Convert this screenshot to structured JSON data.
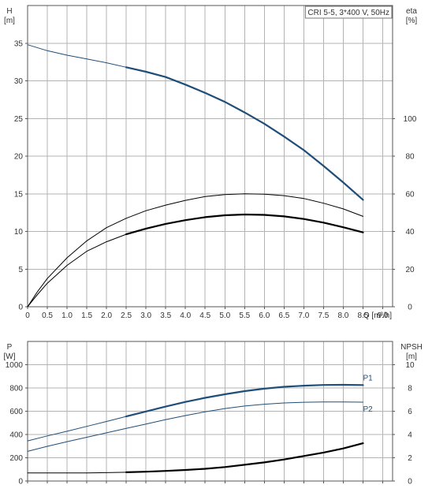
{
  "chart_data": [
    {
      "type": "line",
      "panel": "head-efficiency",
      "legend_box": "CRI 5-5, 3*400 V, 50Hz",
      "y_left_label_line1": "H",
      "y_left_label_line2": "[m]",
      "y_right_label_line1": "eta",
      "y_right_label_line2": "[%]",
      "x_label": "Q [m³/h]",
      "xlim": [
        0,
        9.25
      ],
      "ylim_left": [
        0,
        40
      ],
      "ylim_right": [
        0,
        160
      ],
      "x_ticks": [
        "0",
        "0.5",
        "1.0",
        "1.5",
        "2.0",
        "2.5",
        "3.0",
        "3.5",
        "4.0",
        "4.5",
        "5.0",
        "5.5",
        "6.0",
        "6.5",
        "7.0",
        "7.5",
        "8.0",
        "8.5",
        "9.0"
      ],
      "y_left_ticks": [
        "0",
        "5",
        "10",
        "15",
        "20",
        "25",
        "30",
        "35"
      ],
      "y_right_ticks": [
        "0",
        "20",
        "40",
        "60",
        "80",
        "100"
      ],
      "grid": true,
      "series": [
        {
          "axis": "left",
          "color": "#1f4e79",
          "x": [
            0,
            0.5,
            1.0,
            1.5,
            2.0,
            2.5,
            3.0,
            3.5,
            4.0,
            4.5,
            5.0,
            5.5,
            6.0,
            6.5,
            7.0,
            7.5,
            8.0,
            8.5
          ],
          "y": [
            34.8,
            34.0,
            33.4,
            32.9,
            32.4,
            31.8,
            31.2,
            30.5,
            29.5,
            28.4,
            27.2,
            25.8,
            24.3,
            22.6,
            20.8,
            18.7,
            16.5,
            14.2
          ],
          "bold_from_x": 2.5
        },
        {
          "axis": "right",
          "color": "#000000",
          "x": [
            0,
            0.25,
            0.5,
            1.0,
            1.5,
            2.0,
            2.5,
            3.0,
            3.5,
            4.0,
            4.5,
            5.0,
            5.5,
            6.0,
            6.5,
            7.0,
            7.5,
            8.0,
            8.5
          ],
          "y": [
            0,
            8,
            15,
            26,
            35,
            42,
            47,
            51,
            54,
            56.5,
            58.5,
            59.6,
            60,
            59.8,
            59,
            57.5,
            55,
            52,
            48
          ],
          "bold_from_x": 99
        },
        {
          "axis": "right",
          "color": "#000000",
          "x": [
            0,
            0.25,
            0.5,
            1.0,
            1.5,
            2.0,
            2.5,
            3.0,
            3.5,
            4.0,
            4.5,
            5.0,
            5.5,
            6.0,
            6.5,
            7.0,
            7.5,
            8.0,
            8.5
          ],
          "y": [
            0,
            6.5,
            12.5,
            22,
            29.5,
            34.5,
            38.5,
            41.5,
            44,
            46,
            47.6,
            48.6,
            49,
            48.8,
            48,
            46.6,
            44.7,
            42.2,
            39.5
          ],
          "bold_from_x": 2.5
        }
      ]
    },
    {
      "type": "line",
      "panel": "power-npsh",
      "y_left_label_line1": "P",
      "y_left_label_line2": "[W]",
      "y_right_label_line1": "NPSH",
      "y_right_label_line2": "[m]",
      "xlim": [
        0,
        9.25
      ],
      "ylim_left": [
        0,
        1200
      ],
      "ylim_right": [
        0,
        12
      ],
      "y_left_ticks": [
        "0",
        "200",
        "400",
        "600",
        "800",
        "1000"
      ],
      "y_right_ticks": [
        "0",
        "2",
        "4",
        "6",
        "8",
        "10"
      ],
      "grid": true,
      "series": [
        {
          "name": "P1",
          "axis": "left",
          "color": "#1f4e79",
          "x": [
            0,
            0.5,
            1.0,
            1.5,
            2.0,
            2.5,
            3.0,
            3.5,
            4.0,
            4.5,
            5.0,
            5.5,
            6.0,
            6.5,
            7.0,
            7.5,
            8.0,
            8.5
          ],
          "y": [
            345,
            388,
            428,
            470,
            512,
            555,
            598,
            640,
            680,
            715,
            746,
            773,
            794,
            810,
            820,
            826,
            827,
            825
          ],
          "bold_from_x": 2.5
        },
        {
          "name": "P2",
          "axis": "left",
          "color": "#1f4e79",
          "x": [
            0,
            0.5,
            1.0,
            1.5,
            2.0,
            2.5,
            3.0,
            3.5,
            4.0,
            4.5,
            5.0,
            5.5,
            6.0,
            6.5,
            7.0,
            7.5,
            8.0,
            8.5
          ],
          "y": [
            255,
            298,
            338,
            376,
            414,
            452,
            490,
            528,
            563,
            595,
            623,
            645,
            660,
            671,
            677,
            680,
            680,
            678
          ],
          "bold_from_x": 99
        },
        {
          "axis": "right",
          "color": "#000000",
          "x": [
            0,
            0.5,
            1.0,
            1.5,
            2.0,
            2.5,
            3.0,
            3.5,
            4.0,
            4.5,
            5.0,
            5.5,
            6.0,
            6.5,
            7.0,
            7.5,
            8.0,
            8.5
          ],
          "y": [
            0.7,
            0.7,
            0.69,
            0.7,
            0.72,
            0.75,
            0.8,
            0.87,
            0.95,
            1.05,
            1.2,
            1.4,
            1.6,
            1.85,
            2.15,
            2.45,
            2.8,
            3.25
          ],
          "bold_from_x": 2.5
        }
      ]
    }
  ]
}
